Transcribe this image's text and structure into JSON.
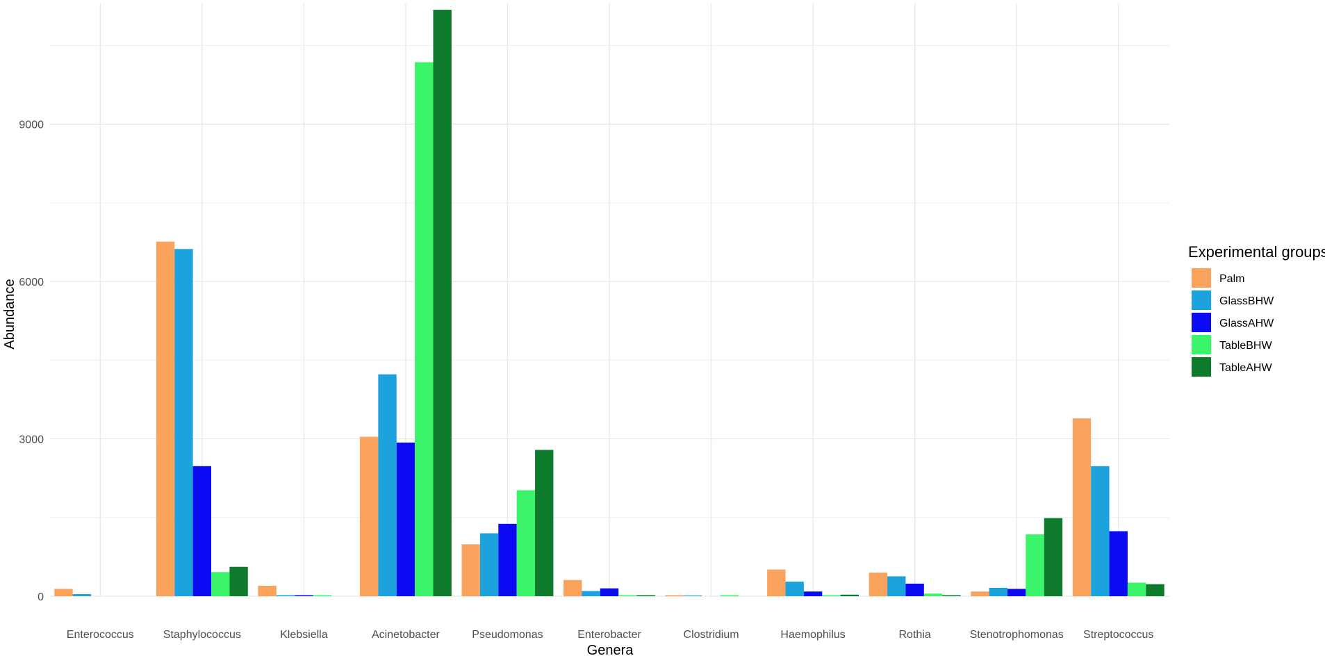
{
  "chart_data": {
    "type": "bar",
    "xlabel": "Genera",
    "ylabel": "Abundance",
    "ylim": [
      0,
      11300
    ],
    "yticks": [
      0,
      3000,
      6000,
      9000
    ],
    "y_minor_ticks": [
      1500,
      4500,
      7500,
      10500
    ],
    "grid": true,
    "legend_position": "right",
    "legend_title": "Experimental groups",
    "categories": [
      "Enterococcus",
      "Staphylococcus",
      "Klebsiella",
      "Acinetobacter",
      "Pseudomonas",
      "Enterobacter",
      "Clostridium",
      "Haemophilus",
      "Rothia",
      "Stenotrophomonas",
      "Streptococcus"
    ],
    "series": [
      {
        "name": "Palm",
        "color": "#F9A35C",
        "values": [
          140,
          6760,
          200,
          3040,
          990,
          310,
          20,
          510,
          450,
          90,
          3390
        ]
      },
      {
        "name": "GlassBHW",
        "color": "#1CA3DE",
        "values": [
          40,
          6620,
          20,
          4230,
          1200,
          100,
          15,
          280,
          380,
          160,
          2480
        ]
      },
      {
        "name": "GlassAHW",
        "color": "#0A0BF2",
        "values": [
          0,
          2480,
          20,
          2930,
          1380,
          150,
          0,
          90,
          240,
          140,
          1240
        ]
      },
      {
        "name": "TableBHW",
        "color": "#3BF46A",
        "values": [
          0,
          460,
          20,
          10180,
          2020,
          20,
          20,
          20,
          50,
          1180,
          260
        ]
      },
      {
        "name": "TableAHW",
        "color": "#0E7A2B",
        "values": [
          0,
          560,
          0,
          11180,
          2790,
          20,
          0,
          30,
          20,
          1490,
          230
        ]
      }
    ]
  }
}
